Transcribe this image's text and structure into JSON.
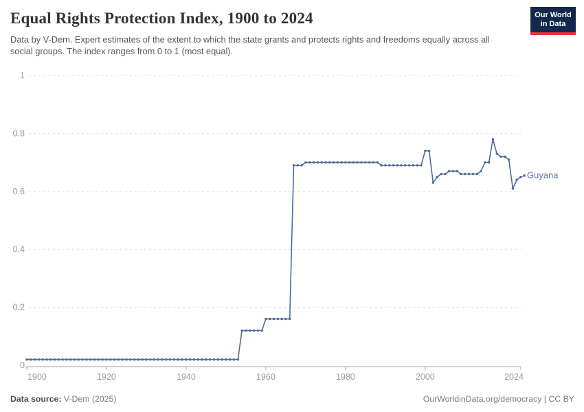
{
  "header": {
    "title": "Equal Rights Protection Index, 1900 to 2024",
    "subtitle": "Data by V-Dem. Expert estimates of the extent to which the state grants and protects rights and freedoms equally across all social groups. The index ranges from 0 to 1 (most equal).",
    "logo": {
      "line1": "Our World",
      "line2": "in Data"
    }
  },
  "footer": {
    "source_label": "Data source:",
    "source_value": " V-Dem (2025)",
    "right_text": "OurWorldinData.org/democracy | CC BY"
  },
  "colors": {
    "line": "#4c6a9c",
    "entity_label": "#5b7a9e",
    "gridline": "#dddddd",
    "axis": "#a8a8a8",
    "tick_label": "#9a9a9a",
    "logo_bg": "#12294b",
    "logo_stripe": "#e0373f"
  },
  "chart_data": {
    "type": "line",
    "title": "Equal Rights Protection Index, 1900 to 2024",
    "entity": "Guyana",
    "xlabel": "",
    "ylabel": "",
    "xlim": [
      1900,
      2024
    ],
    "ylim": [
      0,
      1
    ],
    "xticks": [
      1900,
      1920,
      1940,
      1960,
      1980,
      2000,
      2024
    ],
    "yticks": [
      0,
      0.2,
      0.4,
      0.6,
      0.8,
      1
    ],
    "grid": "horizontal-dashed",
    "legend_position": "end-of-line-label",
    "points": [
      [
        1900,
        0.02
      ],
      [
        1901,
        0.02
      ],
      [
        1902,
        0.02
      ],
      [
        1903,
        0.02
      ],
      [
        1904,
        0.02
      ],
      [
        1905,
        0.02
      ],
      [
        1906,
        0.02
      ],
      [
        1907,
        0.02
      ],
      [
        1908,
        0.02
      ],
      [
        1909,
        0.02
      ],
      [
        1910,
        0.02
      ],
      [
        1911,
        0.02
      ],
      [
        1912,
        0.02
      ],
      [
        1913,
        0.02
      ],
      [
        1914,
        0.02
      ],
      [
        1915,
        0.02
      ],
      [
        1916,
        0.02
      ],
      [
        1917,
        0.02
      ],
      [
        1918,
        0.02
      ],
      [
        1919,
        0.02
      ],
      [
        1920,
        0.02
      ],
      [
        1921,
        0.02
      ],
      [
        1922,
        0.02
      ],
      [
        1923,
        0.02
      ],
      [
        1924,
        0.02
      ],
      [
        1925,
        0.02
      ],
      [
        1926,
        0.02
      ],
      [
        1927,
        0.02
      ],
      [
        1928,
        0.02
      ],
      [
        1929,
        0.02
      ],
      [
        1930,
        0.02
      ],
      [
        1931,
        0.02
      ],
      [
        1932,
        0.02
      ],
      [
        1933,
        0.02
      ],
      [
        1934,
        0.02
      ],
      [
        1935,
        0.02
      ],
      [
        1936,
        0.02
      ],
      [
        1937,
        0.02
      ],
      [
        1938,
        0.02
      ],
      [
        1939,
        0.02
      ],
      [
        1940,
        0.02
      ],
      [
        1941,
        0.02
      ],
      [
        1942,
        0.02
      ],
      [
        1943,
        0.02
      ],
      [
        1944,
        0.02
      ],
      [
        1945,
        0.02
      ],
      [
        1946,
        0.02
      ],
      [
        1947,
        0.02
      ],
      [
        1948,
        0.02
      ],
      [
        1949,
        0.02
      ],
      [
        1950,
        0.02
      ],
      [
        1951,
        0.02
      ],
      [
        1952,
        0.02
      ],
      [
        1953,
        0.02
      ],
      [
        1954,
        0.12
      ],
      [
        1955,
        0.12
      ],
      [
        1956,
        0.12
      ],
      [
        1957,
        0.12
      ],
      [
        1958,
        0.12
      ],
      [
        1959,
        0.12
      ],
      [
        1960,
        0.16
      ],
      [
        1961,
        0.16
      ],
      [
        1962,
        0.16
      ],
      [
        1963,
        0.16
      ],
      [
        1964,
        0.16
      ],
      [
        1965,
        0.16
      ],
      [
        1966,
        0.16
      ],
      [
        1967,
        0.69
      ],
      [
        1968,
        0.69
      ],
      [
        1969,
        0.69
      ],
      [
        1970,
        0.7
      ],
      [
        1971,
        0.7
      ],
      [
        1972,
        0.7
      ],
      [
        1973,
        0.7
      ],
      [
        1974,
        0.7
      ],
      [
        1975,
        0.7
      ],
      [
        1976,
        0.7
      ],
      [
        1977,
        0.7
      ],
      [
        1978,
        0.7
      ],
      [
        1979,
        0.7
      ],
      [
        1980,
        0.7
      ],
      [
        1981,
        0.7
      ],
      [
        1982,
        0.7
      ],
      [
        1983,
        0.7
      ],
      [
        1984,
        0.7
      ],
      [
        1985,
        0.7
      ],
      [
        1986,
        0.7
      ],
      [
        1987,
        0.7
      ],
      [
        1988,
        0.7
      ],
      [
        1989,
        0.69
      ],
      [
        1990,
        0.69
      ],
      [
        1991,
        0.69
      ],
      [
        1992,
        0.69
      ],
      [
        1993,
        0.69
      ],
      [
        1994,
        0.69
      ],
      [
        1995,
        0.69
      ],
      [
        1996,
        0.69
      ],
      [
        1997,
        0.69
      ],
      [
        1998,
        0.69
      ],
      [
        1999,
        0.69
      ],
      [
        2000,
        0.74
      ],
      [
        2001,
        0.74
      ],
      [
        2002,
        0.63
      ],
      [
        2003,
        0.65
      ],
      [
        2004,
        0.66
      ],
      [
        2005,
        0.66
      ],
      [
        2006,
        0.67
      ],
      [
        2007,
        0.67
      ],
      [
        2008,
        0.67
      ],
      [
        2009,
        0.66
      ],
      [
        2010,
        0.66
      ],
      [
        2011,
        0.66
      ],
      [
        2012,
        0.66
      ],
      [
        2013,
        0.66
      ],
      [
        2014,
        0.67
      ],
      [
        2015,
        0.7
      ],
      [
        2016,
        0.7
      ],
      [
        2017,
        0.78
      ],
      [
        2018,
        0.73
      ],
      [
        2019,
        0.72
      ],
      [
        2020,
        0.72
      ],
      [
        2021,
        0.71
      ],
      [
        2022,
        0.61
      ],
      [
        2023,
        0.64
      ],
      [
        2024,
        0.65
      ]
    ]
  }
}
